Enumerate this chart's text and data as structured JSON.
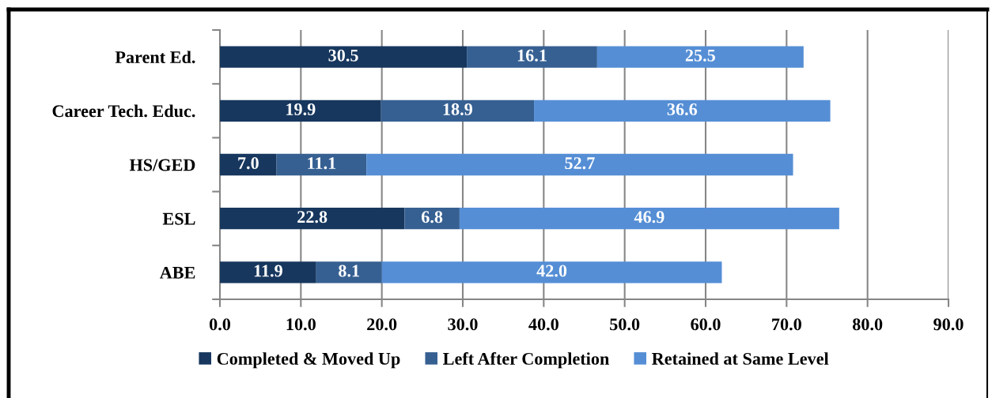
{
  "chart_data": {
    "type": "bar",
    "orientation": "horizontal",
    "stacked": true,
    "categories": [
      "Parent Ed.",
      "Career Tech. Educ.",
      "HS/GED",
      "ESL",
      "ABE"
    ],
    "series": [
      {
        "name": "Completed & Moved Up",
        "color": "#17375e",
        "values": [
          30.5,
          19.9,
          7.0,
          22.8,
          11.9
        ],
        "value_labels": [
          "30.5",
          "19.9",
          "7.0",
          "22.8",
          "11.9"
        ]
      },
      {
        "name": "Left After Completion",
        "color": "#376092",
        "values": [
          16.1,
          18.9,
          11.1,
          6.8,
          8.1
        ],
        "value_labels": [
          "16.1",
          "18.9",
          "11.1",
          "6.8",
          "8.1"
        ]
      },
      {
        "name": "Retained at Same Level",
        "color": "#558ed5",
        "values": [
          25.5,
          36.6,
          52.7,
          46.9,
          42.0
        ],
        "value_labels": [
          "25.5",
          "36.6",
          "52.7",
          "46.9",
          "42.0"
        ]
      }
    ],
    "xlim": [
      0,
      90
    ],
    "xticks": [
      {
        "value": 0,
        "label": "0.0"
      },
      {
        "value": 10,
        "label": "10.0"
      },
      {
        "value": 20,
        "label": "20.0"
      },
      {
        "value": 30,
        "label": "30.0"
      },
      {
        "value": 40,
        "label": "40.0"
      },
      {
        "value": 50,
        "label": "50.0"
      },
      {
        "value": 60,
        "label": "60.0"
      },
      {
        "value": 70,
        "label": "70.0"
      },
      {
        "value": 80,
        "label": "80.0"
      },
      {
        "value": 90,
        "label": "90.0"
      }
    ],
    "grid": "x",
    "legend": "bottom"
  }
}
